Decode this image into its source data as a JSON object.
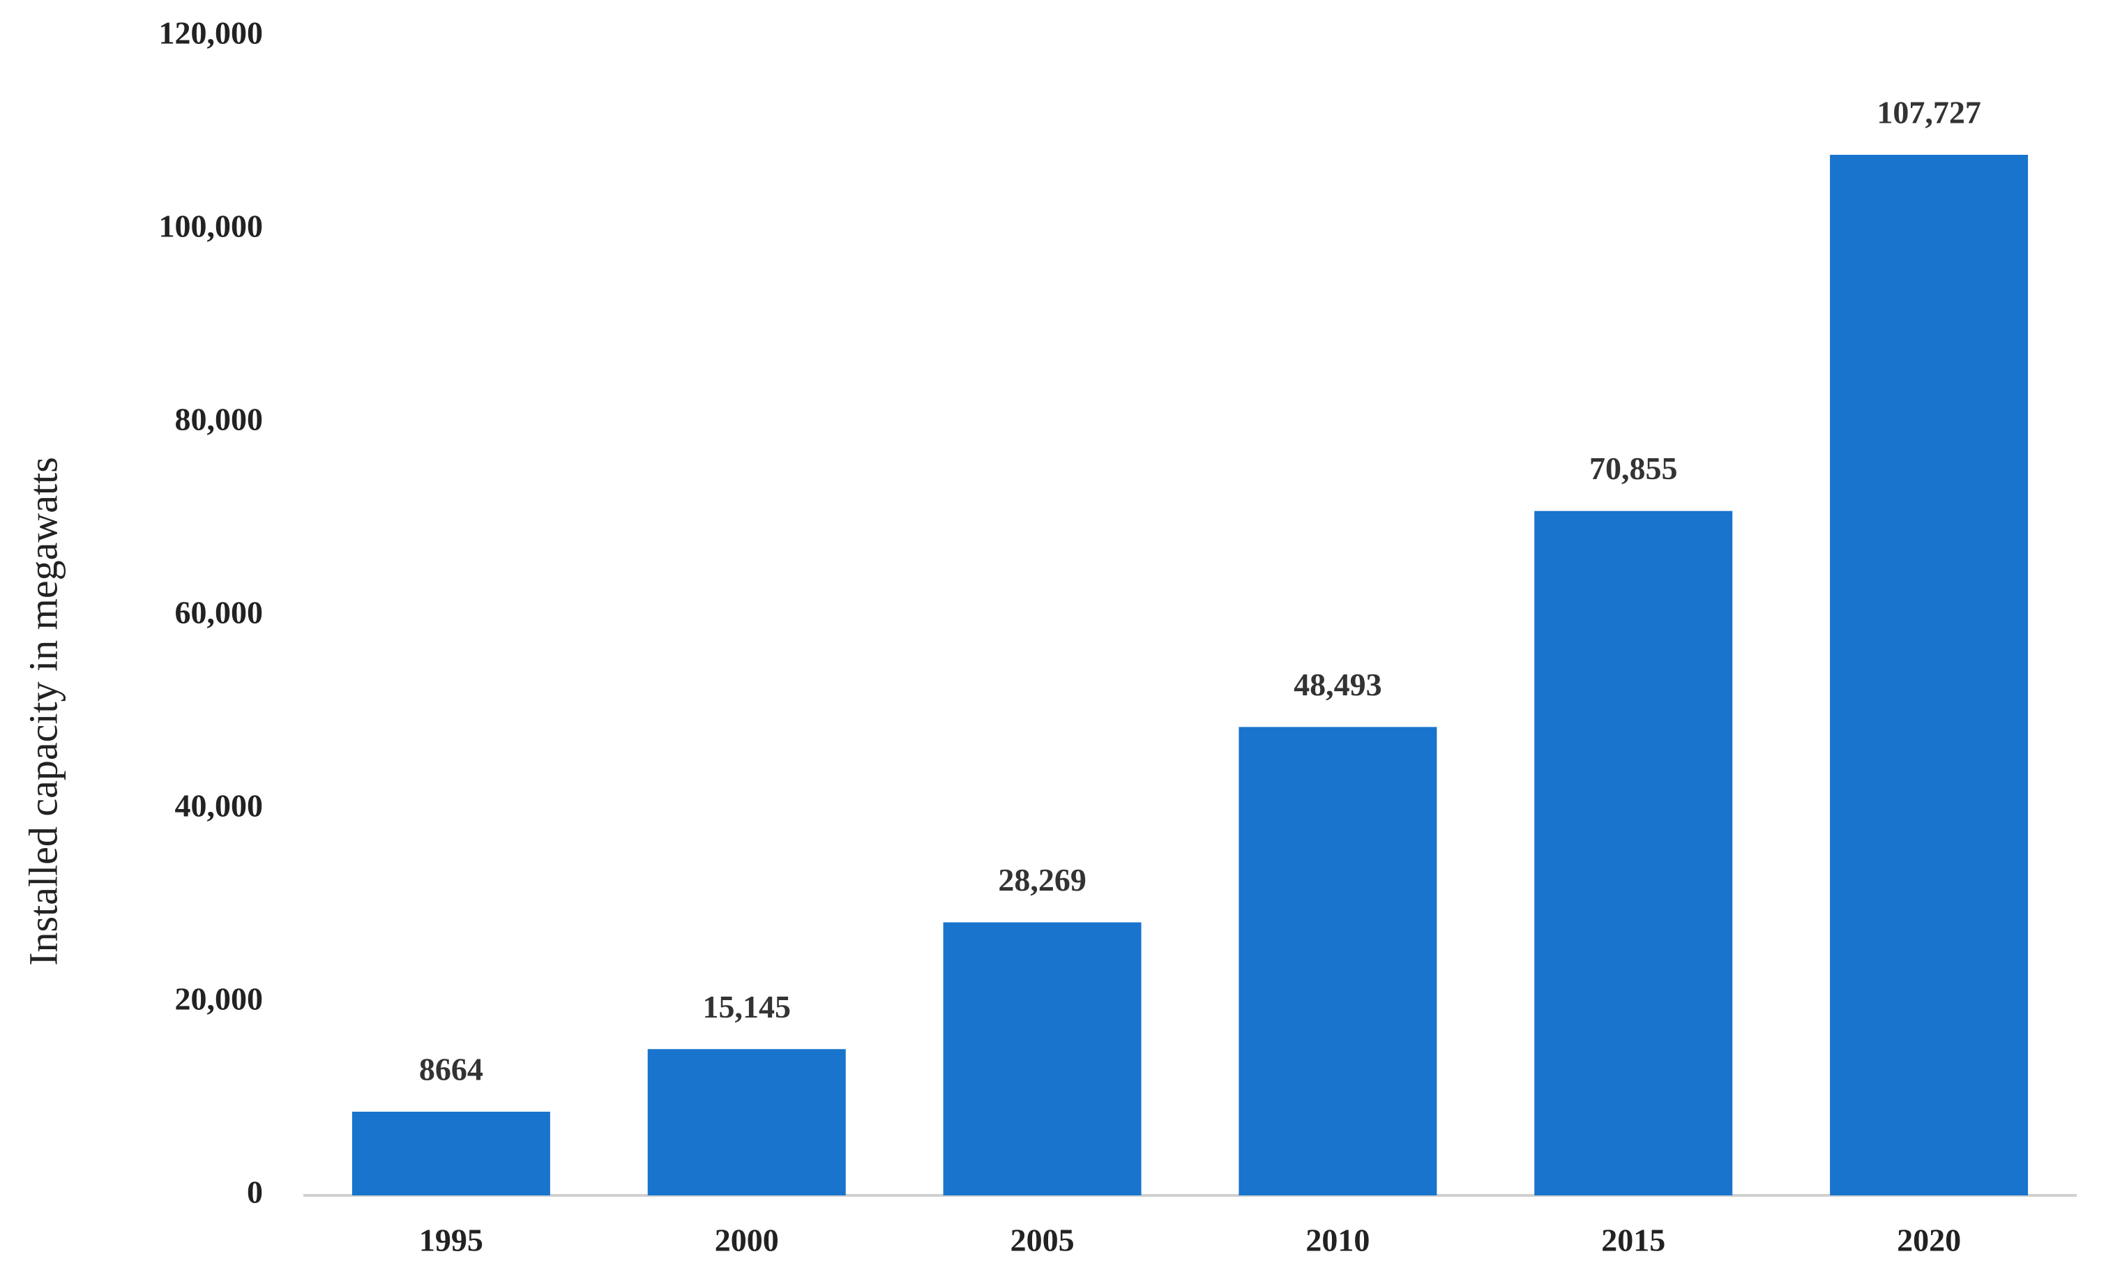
{
  "chart_data": {
    "type": "bar",
    "y_axis_label": "Installed capacity in megawatts",
    "categories": [
      "1995",
      "2000",
      "2005",
      "2010",
      "2015",
      "2020"
    ],
    "values": [
      8664,
      15145,
      28269,
      48493,
      70855,
      107727
    ],
    "value_labels": [
      "8664",
      "15,145",
      "28,269",
      "48,493",
      "70,855",
      "107,727"
    ],
    "color": "#1874cd",
    "ylim": [
      0,
      120000
    ],
    "yticks": [
      0,
      {
        "value": 20000,
        "label": "20,000"
      },
      {
        "value": 40000,
        "label": "40,000"
      },
      {
        "value": 60000,
        "label": "60,000"
      },
      {
        "value": 80000,
        "label": "80,000"
      },
      {
        "value": 100000,
        "label": "100,000"
      },
      {
        "value": 120000,
        "label": "120,000"
      }
    ],
    "grid": false
  }
}
